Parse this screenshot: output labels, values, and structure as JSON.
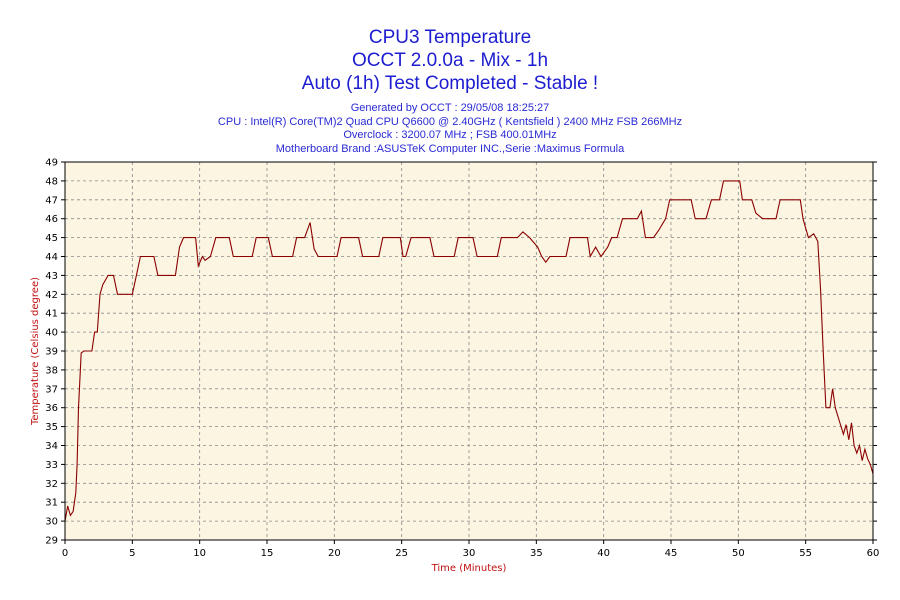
{
  "titles": [
    "CPU3 Temperature",
    "OCCT 2.0.0a - Mix - 1h",
    "Auto (1h) Test Completed - Stable !"
  ],
  "info": {
    "generated": "Generated by OCCT : 29/05/08 18:25:27",
    "cpu": "CPU : Intel(R) Core(TM)2 Quad CPU Q6600 @ 2.40GHz ( Kentsfield ) 2400 MHz FSB 266MHz",
    "overclock": "Overclock : 3200.07 MHz ; FSB 400.01MHz",
    "motherboard": "Motherboard Brand :ASUSTeK Computer INC.,Serie :Maximus Formula"
  },
  "colors": {
    "plot_background": "#fbf5e2",
    "line": "#8b0000",
    "grid": "#8a8a8a",
    "title": "#1c1cd0",
    "axis_title": "#c01010"
  },
  "chart_data": {
    "type": "line",
    "title": "CPU3 Temperature",
    "xlabel": "Time (Minutes)",
    "ylabel": "Temperature (Celsius degree)",
    "xlim": [
      0,
      60
    ],
    "ylim": [
      29,
      49
    ],
    "x_ticks": [
      0,
      5,
      10,
      15,
      20,
      25,
      30,
      35,
      40,
      45,
      50,
      55,
      60
    ],
    "y_ticks": [
      29,
      30,
      31,
      32,
      33,
      34,
      35,
      36,
      37,
      38,
      39,
      40,
      41,
      42,
      43,
      44,
      45,
      46,
      47,
      48,
      49
    ],
    "grid": true,
    "series": [
      {
        "points": [
          [
            0,
            30
          ],
          [
            0.2,
            30.8
          ],
          [
            0.4,
            30.3
          ],
          [
            0.6,
            30.5
          ],
          [
            0.8,
            31.5
          ],
          [
            0.9,
            33
          ],
          [
            1.0,
            36
          ],
          [
            1.2,
            38.9
          ],
          [
            1.4,
            39
          ],
          [
            2.0,
            39
          ],
          [
            2.2,
            40
          ],
          [
            2.4,
            40
          ],
          [
            2.6,
            42
          ],
          [
            2.8,
            42.5
          ],
          [
            3.2,
            43
          ],
          [
            3.6,
            43
          ],
          [
            3.9,
            42
          ],
          [
            5.0,
            42
          ],
          [
            5.3,
            43
          ],
          [
            5.6,
            44
          ],
          [
            6.6,
            44
          ],
          [
            6.9,
            43
          ],
          [
            8.2,
            43
          ],
          [
            8.5,
            44.5
          ],
          [
            8.8,
            45
          ],
          [
            9.7,
            45
          ],
          [
            9.9,
            43.5
          ],
          [
            10.2,
            44
          ],
          [
            10.4,
            43.8
          ],
          [
            10.8,
            44
          ],
          [
            11.2,
            45
          ],
          [
            12.2,
            45
          ],
          [
            12.5,
            44
          ],
          [
            13.9,
            44
          ],
          [
            14.2,
            45
          ],
          [
            15.1,
            45
          ],
          [
            15.4,
            44
          ],
          [
            16.9,
            44
          ],
          [
            17.2,
            45
          ],
          [
            17.8,
            45
          ],
          [
            18.2,
            45.8
          ],
          [
            18.5,
            44.4
          ],
          [
            18.8,
            44
          ],
          [
            20.2,
            44
          ],
          [
            20.5,
            45
          ],
          [
            21.8,
            45
          ],
          [
            22.1,
            44
          ],
          [
            23.3,
            44
          ],
          [
            23.6,
            45
          ],
          [
            24.9,
            45
          ],
          [
            25.1,
            44
          ],
          [
            25.3,
            44
          ],
          [
            25.7,
            45
          ],
          [
            27.1,
            45
          ],
          [
            27.4,
            44
          ],
          [
            28.9,
            44
          ],
          [
            29.2,
            45
          ],
          [
            30.3,
            45
          ],
          [
            30.6,
            44
          ],
          [
            32.1,
            44
          ],
          [
            32.4,
            45
          ],
          [
            33.6,
            45
          ],
          [
            34.0,
            45.3
          ],
          [
            34.5,
            45
          ],
          [
            35.1,
            44.5
          ],
          [
            35.4,
            44
          ],
          [
            35.7,
            43.7
          ],
          [
            36.0,
            44
          ],
          [
            36.4,
            44
          ],
          [
            37.2,
            44
          ],
          [
            37.5,
            45
          ],
          [
            38.8,
            45
          ],
          [
            39.0,
            44
          ],
          [
            39.4,
            44.5
          ],
          [
            39.8,
            44
          ],
          [
            40.3,
            44.5
          ],
          [
            40.6,
            45
          ],
          [
            41.0,
            45
          ],
          [
            41.4,
            46
          ],
          [
            42.5,
            46
          ],
          [
            42.8,
            46.4
          ],
          [
            43.1,
            45
          ],
          [
            43.7,
            45
          ],
          [
            44.1,
            45.4
          ],
          [
            44.6,
            46
          ],
          [
            44.9,
            47
          ],
          [
            46.5,
            47
          ],
          [
            46.8,
            46
          ],
          [
            47.6,
            46
          ],
          [
            48.0,
            47
          ],
          [
            48.6,
            47
          ],
          [
            48.9,
            48
          ],
          [
            50.1,
            48
          ],
          [
            50.3,
            47
          ],
          [
            51.0,
            47
          ],
          [
            51.3,
            46.3
          ],
          [
            51.8,
            46
          ],
          [
            52.8,
            46
          ],
          [
            53.1,
            47
          ],
          [
            54.6,
            47
          ],
          [
            54.8,
            46
          ],
          [
            55.2,
            45
          ],
          [
            55.6,
            45.2
          ],
          [
            55.9,
            44.8
          ],
          [
            56.1,
            42.3
          ],
          [
            56.3,
            39
          ],
          [
            56.5,
            36
          ],
          [
            56.8,
            36
          ],
          [
            57.0,
            37
          ],
          [
            57.2,
            36
          ],
          [
            57.5,
            35.3
          ],
          [
            57.8,
            34.6
          ],
          [
            58.0,
            35.1
          ],
          [
            58.2,
            34.3
          ],
          [
            58.4,
            35.2
          ],
          [
            58.6,
            34
          ],
          [
            58.8,
            33.6
          ],
          [
            59.0,
            34
          ],
          [
            59.2,
            33.2
          ],
          [
            59.4,
            33.8
          ],
          [
            59.6,
            33.3
          ],
          [
            59.8,
            33
          ],
          [
            60,
            32.5
          ]
        ]
      }
    ]
  }
}
